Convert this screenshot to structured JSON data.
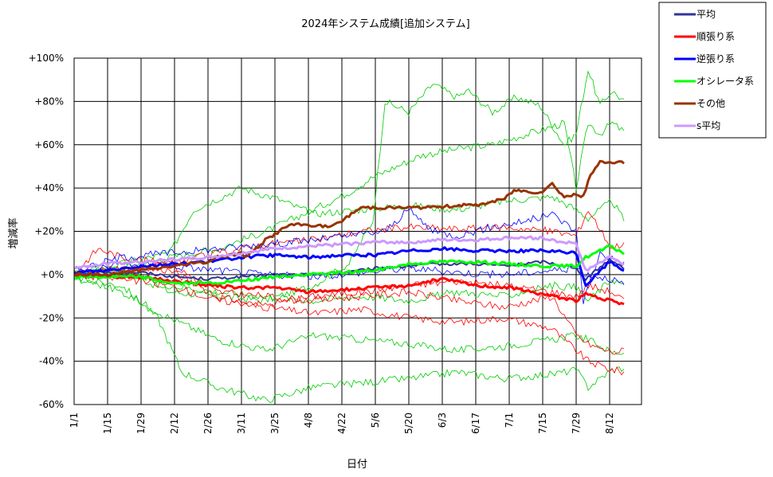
{
  "chart_data": {
    "type": "line",
    "title": "2024年システム成績[追加システム]",
    "xlabel": "日付",
    "ylabel": "増減率",
    "ylim": [
      -60,
      100
    ],
    "yticks": [
      100,
      80,
      60,
      40,
      20,
      0,
      -20,
      -40,
      -60
    ],
    "ytick_labels": [
      "+100%",
      "+80%",
      "+60%",
      "+40%",
      "+20%",
      "+0%",
      "-20%",
      "-40%",
      "-60%"
    ],
    "xticks": [
      "1/1",
      "1/15",
      "1/29",
      "2/12",
      "2/26",
      "3/11",
      "3/25",
      "4/8",
      "4/22",
      "5/6",
      "5/20",
      "6/3",
      "6/17",
      "7/1",
      "7/15",
      "7/29",
      "8/12"
    ],
    "grid": true,
    "legend_position": "top-right",
    "series": [
      {
        "name": "平均",
        "color": "#333399",
        "width": 2,
        "x": [
          0,
          14,
          28,
          42,
          56,
          70,
          84,
          98,
          112,
          126,
          140,
          154,
          168,
          182,
          196,
          210,
          214,
          224,
          230
        ],
        "y": [
          0,
          1,
          1,
          -1,
          -2,
          -1,
          0,
          0,
          1,
          3,
          4,
          5,
          5,
          4,
          6,
          3,
          -2,
          7,
          3
        ]
      },
      {
        "name": "順張り系",
        "color": "#ff0000",
        "width": 3,
        "x": [
          0,
          14,
          28,
          42,
          56,
          70,
          84,
          98,
          112,
          126,
          140,
          154,
          168,
          182,
          196,
          210,
          214,
          224,
          230
        ],
        "y": [
          0,
          -1,
          -1,
          -3,
          -5,
          -6,
          -6,
          -8,
          -7,
          -6,
          -5,
          -2,
          -5,
          -6,
          -9,
          -12,
          -9,
          -12,
          -14
        ]
      },
      {
        "name": "逆張り系",
        "color": "#0000ff",
        "width": 3,
        "x": [
          0,
          14,
          28,
          42,
          56,
          70,
          84,
          98,
          112,
          126,
          140,
          154,
          168,
          182,
          196,
          210,
          214,
          224,
          230
        ],
        "y": [
          1,
          2,
          4,
          5,
          6,
          8,
          9,
          8,
          9,
          9,
          11,
          12,
          11,
          11,
          11,
          10,
          -5,
          6,
          2
        ]
      },
      {
        "name": "オシレータ系",
        "color": "#00ff00",
        "width": 3,
        "x": [
          0,
          14,
          28,
          42,
          56,
          70,
          84,
          98,
          112,
          126,
          140,
          154,
          168,
          182,
          196,
          210,
          214,
          224,
          230
        ],
        "y": [
          -1,
          -1,
          -1,
          -4,
          -4,
          -3,
          -1,
          0,
          1,
          2,
          5,
          6,
          6,
          5,
          4,
          4,
          8,
          13,
          10
        ]
      },
      {
        "name": "その他",
        "color": "#993300",
        "width": 3,
        "x": [
          0,
          14,
          28,
          42,
          56,
          60,
          70,
          72,
          80,
          90,
          98,
          108,
          112,
          120,
          140,
          150,
          160,
          168,
          180,
          184,
          195,
          200,
          205,
          210,
          213,
          216,
          220,
          225,
          230
        ],
        "y": [
          0,
          0,
          2,
          4,
          6,
          8,
          10,
          8,
          16,
          23,
          23,
          22,
          25,
          31,
          31,
          31,
          32,
          32,
          35,
          39,
          38,
          42,
          36,
          37,
          36,
          46,
          52,
          52,
          52
        ]
      },
      {
        "name": "s平均",
        "color": "#cc99ff",
        "width": 3,
        "x": [
          0,
          14,
          28,
          42,
          56,
          70,
          84,
          98,
          112,
          126,
          140,
          154,
          168,
          182,
          196,
          200,
          210,
          214,
          224,
          230
        ],
        "y": [
          3,
          5,
          6,
          7,
          8,
          10,
          12,
          13,
          14,
          15,
          15,
          16,
          16,
          17,
          17,
          16,
          14,
          2,
          8,
          5
        ]
      }
    ],
    "thin_series": [
      {
        "color": "#00cc00",
        "x": [
          0,
          20,
          40,
          60,
          80,
          100,
          115,
          125,
          130,
          140,
          150,
          160,
          165,
          175,
          185,
          195,
          205,
          210,
          215,
          220,
          225,
          230
        ],
        "y": [
          0,
          2,
          -8,
          -10,
          -12,
          -5,
          5,
          25,
          80,
          75,
          88,
          82,
          85,
          75,
          82,
          78,
          60,
          65,
          95,
          78,
          85,
          80
        ]
      },
      {
        "color": "#00cc00",
        "x": [
          0,
          20,
          40,
          60,
          80,
          100,
          115,
          125,
          135,
          145,
          160,
          175,
          190,
          205,
          210,
          215,
          220,
          225,
          230
        ],
        "y": [
          1,
          3,
          8,
          12,
          20,
          30,
          38,
          45,
          50,
          55,
          58,
          60,
          65,
          70,
          40,
          70,
          65,
          70,
          66
        ]
      },
      {
        "color": "#00cc00",
        "x": [
          0,
          20,
          40,
          50,
          70,
          85,
          100,
          120,
          140,
          160,
          180,
          200,
          210,
          215,
          225,
          230
        ],
        "y": [
          0,
          5,
          10,
          30,
          40,
          35,
          28,
          30,
          32,
          30,
          34,
          36,
          30,
          26,
          34,
          25
        ]
      },
      {
        "color": "#00cc00",
        "x": [
          0,
          20,
          35,
          45,
          60,
          80,
          100,
          120,
          140,
          160,
          180,
          200,
          210,
          215,
          225,
          230
        ],
        "y": [
          -2,
          -5,
          -20,
          -45,
          -52,
          -58,
          -52,
          -50,
          -48,
          -45,
          -48,
          -46,
          -44,
          -52,
          -44,
          -43
        ]
      },
      {
        "color": "#00cc00",
        "x": [
          0,
          20,
          40,
          60,
          80,
          100,
          120,
          140,
          160,
          180,
          200,
          210,
          215,
          225,
          230
        ],
        "y": [
          -1,
          -8,
          -20,
          -30,
          -35,
          -28,
          -30,
          -32,
          -35,
          -33,
          -30,
          -28,
          -30,
          -36,
          -36
        ]
      },
      {
        "color": "#00cc00",
        "x": [
          0,
          20,
          40,
          60,
          80,
          100,
          120,
          140,
          160,
          180,
          200,
          210,
          215,
          225,
          230
        ],
        "y": [
          0,
          1,
          -5,
          -8,
          -10,
          -12,
          -10,
          -12,
          -8,
          -10,
          -5,
          -6,
          -12,
          -2,
          -5
        ]
      },
      {
        "color": "#ff0000",
        "x": [
          0,
          20,
          40,
          60,
          80,
          100,
          120,
          140,
          160,
          180,
          200,
          210,
          215,
          225,
          230
        ],
        "y": [
          0,
          3,
          2,
          -10,
          -15,
          -18,
          -16,
          -20,
          -22,
          -20,
          -25,
          -35,
          -40,
          -44,
          -45
        ]
      },
      {
        "color": "#ff0000",
        "x": [
          0,
          10,
          20,
          40,
          60,
          80,
          100,
          120,
          140,
          160,
          180,
          200,
          210,
          215,
          225,
          230
        ],
        "y": [
          0,
          12,
          8,
          5,
          -8,
          -10,
          -12,
          -10,
          -8,
          -12,
          -15,
          -10,
          -28,
          -32,
          -36,
          -35
        ]
      },
      {
        "color": "#ff0000",
        "x": [
          0,
          20,
          40,
          60,
          80,
          100,
          120,
          140,
          160,
          180,
          200,
          210,
          215,
          225,
          230
        ],
        "y": [
          2,
          1,
          5,
          10,
          14,
          16,
          20,
          22,
          21,
          22,
          20,
          18,
          30,
          12,
          15
        ]
      },
      {
        "color": "#ff0000",
        "x": [
          0,
          20,
          40,
          60,
          80,
          100,
          120,
          140,
          160,
          180,
          200,
          210,
          215,
          225,
          230
        ],
        "y": [
          0,
          -2,
          -5,
          -12,
          -14,
          -10,
          -8,
          -5,
          -3,
          -5,
          -8,
          -10,
          -5,
          -8,
          -12
        ]
      },
      {
        "color": "#0000ff",
        "x": [
          0,
          20,
          40,
          60,
          80,
          100,
          115,
          130,
          140,
          150,
          160,
          175,
          190,
          200,
          210,
          213,
          220,
          230
        ],
        "y": [
          2,
          8,
          10,
          12,
          14,
          16,
          18,
          20,
          30,
          20,
          18,
          22,
          25,
          28,
          20,
          -12,
          10,
          5
        ]
      },
      {
        "color": "#0000ff",
        "x": [
          0,
          20,
          40,
          60,
          80,
          100,
          120,
          140,
          160,
          180,
          200,
          210,
          215,
          225,
          230
        ],
        "y": [
          0,
          5,
          4,
          2,
          0,
          -1,
          1,
          3,
          1,
          0,
          2,
          3,
          0,
          -2,
          -5
        ]
      }
    ]
  },
  "legend": {
    "items": [
      {
        "label": "平均",
        "color": "#333399"
      },
      {
        "label": "順張り系",
        "color": "#ff0000"
      },
      {
        "label": "逆張り系",
        "color": "#0000ff"
      },
      {
        "label": "オシレータ系",
        "color": "#00ff00"
      },
      {
        "label": "その他",
        "color": "#993300"
      },
      {
        "label": "s平均",
        "color": "#cc99ff"
      }
    ]
  }
}
